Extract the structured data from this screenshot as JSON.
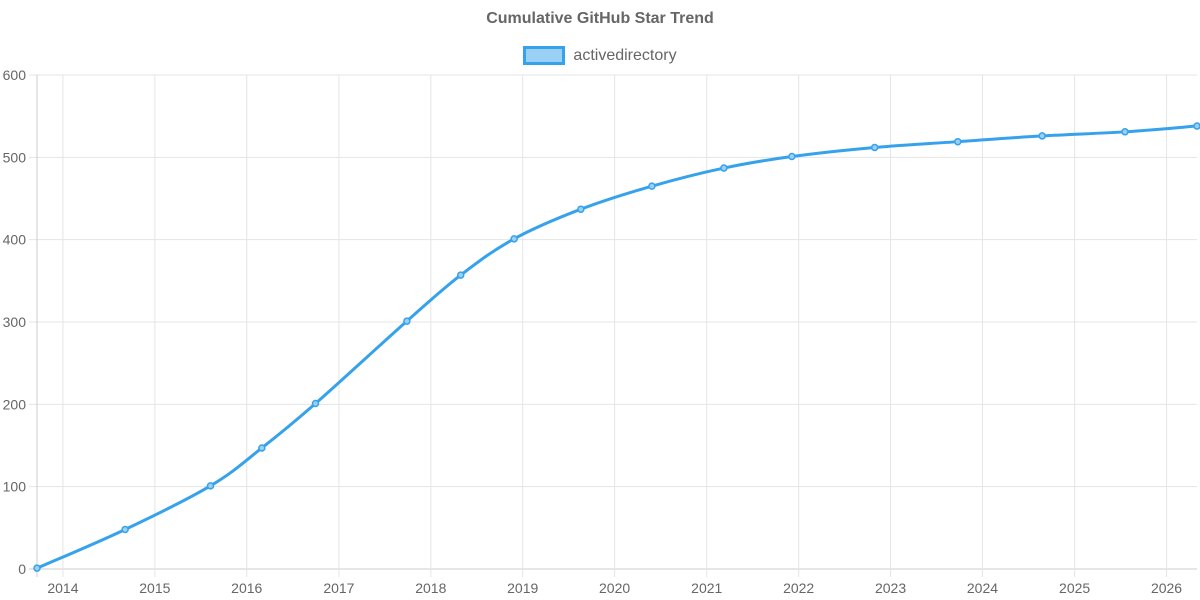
{
  "chart_data": {
    "type": "line",
    "title": "Cumulative GitHub Star Trend",
    "xlabel": "",
    "ylabel": "",
    "legend_position": "top-center",
    "grid": true,
    "colors": {
      "line": "#36a2eb",
      "fill": "#9ad0f5",
      "grid": "#e5e5e5",
      "text": "#666666"
    },
    "ylim": [
      0,
      600
    ],
    "yticks": [
      0,
      100,
      200,
      300,
      400,
      500,
      600
    ],
    "xlim": [
      "2013-09-20",
      "2026-05-02"
    ],
    "xticks": [
      "2014",
      "2015",
      "2016",
      "2017",
      "2018",
      "2019",
      "2020",
      "2021",
      "2022",
      "2023",
      "2024",
      "2025",
      "2026"
    ],
    "series": [
      {
        "name": "activedirectory",
        "points": [
          {
            "x": "2013-09-20",
            "y": 1
          },
          {
            "x": "2014-09-05",
            "y": 48
          },
          {
            "x": "2015-08-10",
            "y": 101
          },
          {
            "x": "2016-03-01",
            "y": 147
          },
          {
            "x": "2016-09-30",
            "y": 201
          },
          {
            "x": "2017-09-28",
            "y": 301
          },
          {
            "x": "2018-04-30",
            "y": 357
          },
          {
            "x": "2018-11-28",
            "y": 401
          },
          {
            "x": "2019-08-20",
            "y": 437
          },
          {
            "x": "2020-05-28",
            "y": 465
          },
          {
            "x": "2021-03-10",
            "y": 487
          },
          {
            "x": "2021-12-05",
            "y": 501
          },
          {
            "x": "2022-10-30",
            "y": 512
          },
          {
            "x": "2023-09-25",
            "y": 519
          },
          {
            "x": "2024-08-25",
            "y": 526
          },
          {
            "x": "2025-07-20",
            "y": 531
          },
          {
            "x": "2026-05-02",
            "y": 538
          }
        ]
      }
    ]
  }
}
